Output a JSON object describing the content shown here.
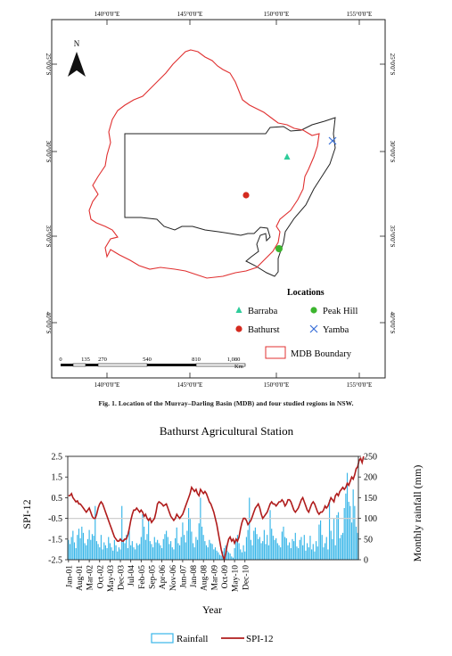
{
  "map": {
    "north_label": "N",
    "lon_ticks": [
      "140°0'0\"E",
      "145°0'0\"E",
      "150°0'0\"E",
      "155°0'0\"E"
    ],
    "lat_ticks": [
      "25°0'0\"S",
      "30°0'0\"S",
      "35°0'0\"S",
      "40°0'0\"S"
    ],
    "scale_values": [
      "0",
      "135",
      "270",
      "540",
      "810",
      "1,080"
    ],
    "scale_unit": "Km",
    "legend_title": "Locations",
    "locations": [
      {
        "name": "Barraba",
        "symbol": "triangle",
        "color": "#2ecc9a"
      },
      {
        "name": "Peak Hill",
        "symbol": "circle",
        "color": "#3cb52e"
      },
      {
        "name": "Bathurst",
        "symbol": "circle",
        "color": "#d42a1f"
      },
      {
        "name": "Yamba",
        "symbol": "cross",
        "color": "#3a6fd8"
      }
    ],
    "boundary_label": "MDB Boundary",
    "boundary_color": "#e03030"
  },
  "caption": {
    "prefix": "Fig. 1.",
    "text": "Location of the Murray–Darling Basin (MDB) and four studied regions in NSW."
  },
  "chart_data": {
    "type": "bar+line",
    "title": "Bathurst Agricultural Station",
    "xlabel": "Year",
    "ylabel_left": "SPI-12",
    "ylabel_right": "Monthly rainfall (mm)",
    "ylim_left": [
      -2.5,
      2.5
    ],
    "ylim_right": [
      0,
      250
    ],
    "yticks_left": [
      "2.5",
      "1.5",
      "0.5",
      "-0.5",
      "-1.5",
      "-2.5"
    ],
    "yticks_right": [
      "250",
      "200",
      "150",
      "100",
      "50",
      "0"
    ],
    "xtick_labels": [
      "Jan-01",
      "Aug-01",
      "Mar-02",
      "Oct-02",
      "May-03",
      "Dec-03",
      "Jul-04",
      "Feb-05",
      "Sep-05",
      "Apr-06",
      "Nov-06",
      "Jun-07",
      "Jan-08",
      "Aug-08",
      "Mar-09",
      "Oct-09",
      "May-10",
      "Dec-10"
    ],
    "legend": [
      "Rainfall",
      "SPI-12"
    ],
    "colors": {
      "rainfall": "#38b6e8",
      "spi": "#b01c1c"
    },
    "rainfall": [
      48,
      38,
      55,
      70,
      42,
      28,
      60,
      75,
      52,
      80,
      65,
      40,
      35,
      50,
      72,
      48,
      62,
      58,
      130,
      45,
      38,
      30,
      60,
      25,
      42,
      35,
      28,
      55,
      40,
      30,
      22,
      48,
      35,
      20,
      30,
      25,
      130,
      50,
      40,
      60,
      28,
      70,
      35,
      45,
      30,
      25,
      40,
      35,
      38,
      55,
      110,
      80,
      48,
      62,
      95,
      45,
      38,
      30,
      55,
      42,
      48,
      40,
      35,
      28,
      50,
      62,
      70,
      55,
      38,
      45,
      30,
      25,
      52,
      78,
      40,
      35,
      55,
      90,
      60,
      42,
      70,
      125,
      100,
      68,
      40,
      30,
      55,
      48,
      88,
      150,
      80,
      60,
      45,
      35,
      30,
      48,
      40,
      38,
      25,
      30,
      22,
      18,
      12,
      10,
      20,
      28,
      35,
      22,
      18,
      15,
      8,
      5,
      28,
      45,
      60,
      40,
      25,
      18,
      35,
      20,
      55,
      72,
      150,
      48,
      35,
      70,
      78,
      62,
      50,
      55,
      40,
      45,
      72,
      38,
      60,
      35,
      120,
      75,
      58,
      48,
      52,
      40,
      35,
      30,
      68,
      80,
      55,
      52,
      35,
      42,
      28,
      50,
      45,
      65,
      32,
      28,
      48,
      55,
      35,
      60,
      22,
      40,
      30,
      58,
      25,
      38,
      20,
      45,
      32,
      85,
      95,
      60,
      30,
      40,
      55,
      25,
      145,
      70,
      50,
      100,
      35,
      108,
      115,
      52,
      60,
      65,
      125,
      160,
      210,
      140,
      130,
      90,
      170,
      130,
      80,
      65
    ],
    "spi12": [
      0.6,
      0.6,
      0.7,
      0.5,
      0.4,
      0.3,
      0.35,
      0.2,
      0.2,
      0.1,
      0.0,
      -0.1,
      -0.2,
      -0.1,
      0.0,
      -0.2,
      -0.4,
      -0.5,
      -0.5,
      -0.3,
      0.0,
      0.2,
      0.3,
      0.2,
      0.0,
      -0.2,
      -0.4,
      -0.6,
      -0.8,
      -1.0,
      -1.2,
      -1.4,
      -1.5,
      -1.6,
      -1.6,
      -1.5,
      -1.6,
      -1.6,
      -1.5,
      -1.5,
      -1.3,
      -1.0,
      -0.6,
      -0.3,
      -0.1,
      -0.1,
      0.0,
      -0.1,
      -0.2,
      -0.1,
      -0.2,
      -0.4,
      -0.3,
      -0.5,
      -0.6,
      -0.5,
      -0.7,
      -0.6,
      -0.5,
      -0.2,
      0.2,
      0.3,
      0.25,
      0.2,
      0.1,
      0.15,
      0.2,
      0.0,
      -0.2,
      -0.4,
      -0.5,
      -0.6,
      -0.5,
      -0.3,
      -0.4,
      -0.5,
      -0.4,
      -0.3,
      -0.1,
      0.1,
      0.3,
      0.5,
      0.7,
      1.0,
      0.9,
      0.8,
      0.9,
      0.7,
      0.6,
      0.9,
      0.8,
      0.7,
      0.8,
      0.7,
      0.5,
      0.3,
      0.2,
      0.0,
      -0.2,
      -0.5,
      -0.8,
      -1.2,
      -1.6,
      -2.0,
      -2.3,
      -2.5,
      -2.2,
      -1.8,
      -1.5,
      -1.4,
      -1.6,
      -1.5,
      -1.7,
      -1.5,
      -1.6,
      -1.4,
      -1.0,
      -0.7,
      -0.5,
      -0.5,
      -0.6,
      -0.8,
      -0.7,
      -0.6,
      -0.4,
      -0.2,
      0.0,
      0.1,
      0.2,
      0.0,
      -0.3,
      -0.5,
      -0.4,
      -0.3,
      -0.2,
      0.0,
      0.2,
      0.3,
      0.2,
      0.2,
      0.1,
      0.2,
      0.3,
      0.3,
      0.4,
      0.3,
      0.1,
      0.2,
      0.4,
      0.4,
      0.3,
      0.1,
      -0.1,
      -0.2,
      -0.1,
      0.0,
      0.2,
      0.4,
      0.5,
      0.3,
      0.1,
      -0.1,
      -0.2,
      0.0,
      0.2,
      0.3,
      0.2,
      0.0,
      -0.2,
      -0.3,
      -0.2,
      -0.2,
      -0.1,
      0.1,
      0.0,
      0.1,
      0.3,
      0.5,
      0.4,
      0.3,
      0.6,
      0.7,
      0.6,
      0.8,
      0.9,
      1.0,
      0.9,
      1.0,
      1.2,
      1.1,
      1.3,
      1.5,
      1.4,
      1.6,
      1.9,
      2.0,
      2.3,
      2.4,
      2.2,
      2.5
    ]
  }
}
